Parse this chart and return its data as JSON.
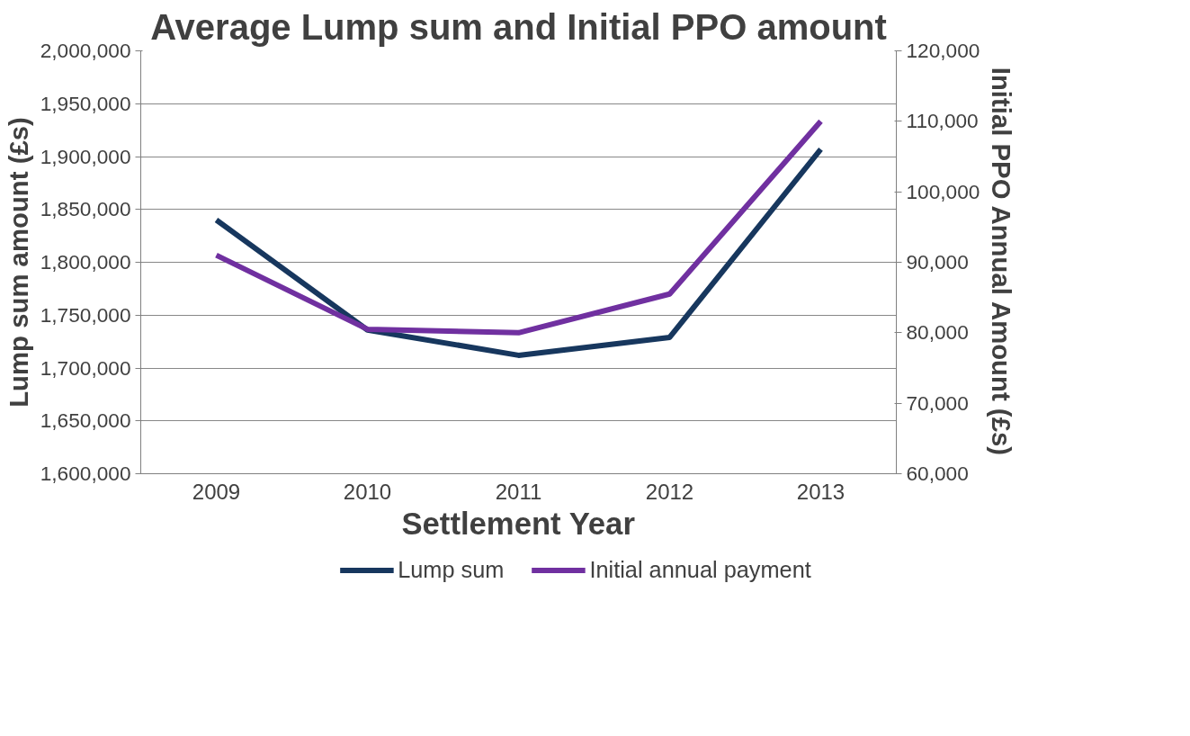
{
  "chart_data": {
    "type": "line",
    "title": "Average Lump sum and Initial PPO amount",
    "xlabel": "Settlement Year",
    "ylabel": "Lump sum amount (£s)",
    "y2label": "Initial PPO Annual Amount (£s)",
    "categories": [
      "2009",
      "2010",
      "2011",
      "2012",
      "2013"
    ],
    "series": [
      {
        "name": "Lump sum",
        "color": "#17375e",
        "values": [
          1840000,
          1736000,
          1712000,
          1729000,
          1907000
        ]
      },
      {
        "name": "Initial annual payment",
        "color": "#7030a0",
        "axis": "y2",
        "values": [
          91000,
          80500,
          80000,
          85500,
          110000
        ]
      }
    ],
    "ylim": [
      1600000,
      2000000
    ],
    "yticks": [
      {
        "value": 1600000,
        "label": "1,600,000"
      },
      {
        "value": 1650000,
        "label": "1,650,000"
      },
      {
        "value": 1700000,
        "label": "1,700,000"
      },
      {
        "value": 1750000,
        "label": "1,750,000"
      },
      {
        "value": 1800000,
        "label": "1,800,000"
      },
      {
        "value": 1850000,
        "label": "1,850,000"
      },
      {
        "value": 1900000,
        "label": "1,900,000"
      },
      {
        "value": 1950000,
        "label": "1,950,000"
      },
      {
        "value": 2000000,
        "label": "2,000,000"
      }
    ],
    "y2lim": [
      60000,
      120000
    ],
    "y2ticks": [
      {
        "value": 60000,
        "label": "60,000"
      },
      {
        "value": 70000,
        "label": "70,000"
      },
      {
        "value": 80000,
        "label": "80,000"
      },
      {
        "value": 90000,
        "label": "90,000"
      },
      {
        "value": 100000,
        "label": "100,000"
      },
      {
        "value": 110000,
        "label": "110,000"
      },
      {
        "value": 120000,
        "label": "120,000"
      }
    ],
    "grid": "y",
    "legend": "bottom",
    "marker": "none",
    "line_style": "solid"
  }
}
